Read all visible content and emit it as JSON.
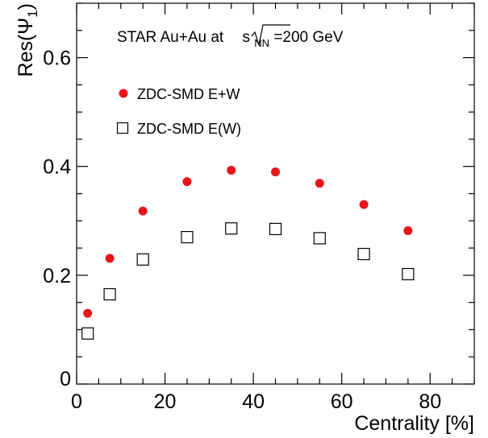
{
  "chart_data": {
    "type": "scatter",
    "annotation": {
      "prefix": "STAR Au+Au at ",
      "sqrt_var": "s",
      "sqrt_sub": "NN",
      "suffix": "=200 GeV"
    },
    "xlabel": "Centrality [%]",
    "ylabel": {
      "prefix": "Res(",
      "symbol": "Ψ",
      "sub": "1",
      "suffix": ")"
    },
    "xlim": [
      0,
      90
    ],
    "ylim": [
      0,
      0.7
    ],
    "x_ticks": [
      {
        "value": 0,
        "label": "0"
      },
      {
        "value": 20,
        "label": "20"
      },
      {
        "value": 40,
        "label": "40"
      },
      {
        "value": 60,
        "label": "60"
      },
      {
        "value": 80,
        "label": "80"
      }
    ],
    "y_ticks": [
      {
        "value": 0,
        "label": "0"
      },
      {
        "value": 0.2,
        "label": "0.2"
      },
      {
        "value": 0.4,
        "label": "0.4"
      },
      {
        "value": 0.6,
        "label": "0.6"
      }
    ],
    "legend_position": "top-left",
    "grid": false,
    "series": [
      {
        "name": "ZDC-SMD E+W",
        "marker": "filled-circle",
        "color": "#e8141c",
        "x": [
          2.5,
          7.5,
          15,
          25,
          35,
          45,
          55,
          65,
          75
        ],
        "y": [
          0.13,
          0.231,
          0.318,
          0.372,
          0.393,
          0.39,
          0.369,
          0.33,
          0.282
        ]
      },
      {
        "name": "ZDC-SMD E(W)",
        "marker": "open-square",
        "color": "#000000",
        "x": [
          2.5,
          7.5,
          15,
          25,
          35,
          45,
          55,
          65,
          75
        ],
        "y": [
          0.093,
          0.165,
          0.229,
          0.27,
          0.286,
          0.285,
          0.268,
          0.239,
          0.202
        ]
      }
    ]
  }
}
